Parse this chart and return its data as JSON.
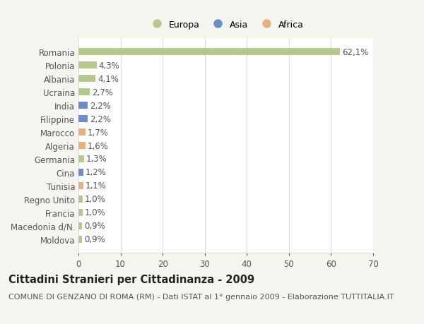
{
  "categories": [
    "Moldova",
    "Macedonia d/N.",
    "Francia",
    "Regno Unito",
    "Tunisia",
    "Cina",
    "Germania",
    "Algeria",
    "Marocco",
    "Filippine",
    "India",
    "Ucraina",
    "Albania",
    "Polonia",
    "Romania"
  ],
  "values": [
    0.9,
    0.9,
    1.0,
    1.0,
    1.1,
    1.2,
    1.3,
    1.6,
    1.7,
    2.2,
    2.2,
    2.7,
    4.1,
    4.3,
    62.1
  ],
  "labels": [
    "0,9%",
    "0,9%",
    "1,0%",
    "1,0%",
    "1,1%",
    "1,2%",
    "1,3%",
    "1,6%",
    "1,7%",
    "2,2%",
    "2,2%",
    "2,7%",
    "4,1%",
    "4,3%",
    "62,1%"
  ],
  "colors": [
    "#b5c98e",
    "#b5c98e",
    "#b5c98e",
    "#b5c98e",
    "#e8b07a",
    "#6b8ec4",
    "#b5c98e",
    "#e8b07a",
    "#e8b07a",
    "#6b8ec4",
    "#6b8ec4",
    "#b5c98e",
    "#b5c98e",
    "#b5c98e",
    "#b5c98e"
  ],
  "legend_labels": [
    "Europa",
    "Asia",
    "Africa"
  ],
  "legend_colors": [
    "#b5c98e",
    "#6b8ec4",
    "#e8b07a"
  ],
  "xlim": [
    0,
    70
  ],
  "xticks": [
    0,
    10,
    20,
    30,
    40,
    50,
    60,
    70
  ],
  "title": "Cittadini Stranieri per Cittadinanza - 2009",
  "subtitle": "COMUNE DI GENZANO DI ROMA (RM) - Dati ISTAT al 1° gennaio 2009 - Elaborazione TUTTITALIA.IT",
  "background_color": "#f5f5f0",
  "plot_background": "#ffffff",
  "grid_color": "#dddddd",
  "text_color": "#555555",
  "label_fontsize": 8.5,
  "tick_fontsize": 8.5,
  "title_fontsize": 10.5,
  "subtitle_fontsize": 8.0,
  "bar_height": 0.55
}
